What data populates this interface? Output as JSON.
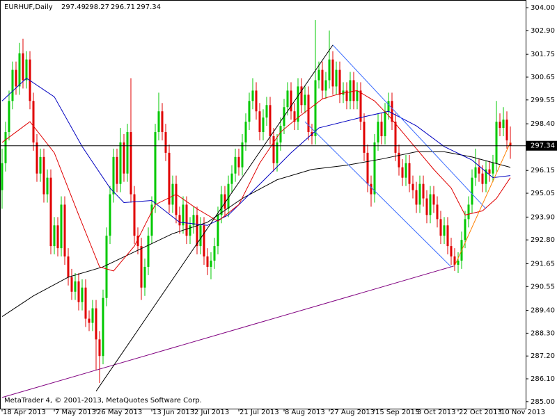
{
  "chart_data": {
    "type": "candlestick",
    "title": "EURHUF,Daily",
    "footer": "MetaTrader 4, © 2001-2013, MetaQuotes Software Corp.",
    "up_color": "#00c800",
    "down_color": "#e00000",
    "xlim": [
      -0.6,
      150.4
    ],
    "ylim": [
      284.66,
      304.37
    ],
    "xticks": [
      {
        "value": 0,
        "label": "18 Apr 2013"
      },
      {
        "value": 15,
        "label": "7 May 2013"
      },
      {
        "value": 27,
        "label": "26 May 2013"
      },
      {
        "value": 43,
        "label": "13 Jun 2013"
      },
      {
        "value": 55,
        "label": "2 Jul 2013"
      },
      {
        "value": 68,
        "label": "21 Jul 2013"
      },
      {
        "value": 81,
        "label": "8 Aug 2013"
      },
      {
        "value": 94,
        "label": "27 Aug 2013"
      },
      {
        "value": 107,
        "label": "15 Sep 2013"
      },
      {
        "value": 119,
        "label": "3 Oct 2013"
      },
      {
        "value": 131,
        "label": "22 Oct 2013"
      },
      {
        "value": 143,
        "label": "10 Nov 2013"
      }
    ],
    "yticks": [
      {
        "value": 304,
        "label": "304.00"
      },
      {
        "value": 302.9,
        "label": "302.90"
      },
      {
        "value": 301.75,
        "label": "301.75"
      },
      {
        "value": 300.65,
        "label": "300.65"
      },
      {
        "value": 299.55,
        "label": "299.55"
      },
      {
        "value": 298.4,
        "label": "298.40"
      },
      {
        "value": 296.15,
        "label": "296.15"
      },
      {
        "value": 295.05,
        "label": "295.05"
      },
      {
        "value": 293.9,
        "label": "293.90"
      },
      {
        "value": 292.8,
        "label": "292.80"
      },
      {
        "value": 291.65,
        "label": "291.65"
      },
      {
        "value": 290.55,
        "label": "290.55"
      },
      {
        "value": 289.4,
        "label": "289.40"
      },
      {
        "value": 288.3,
        "label": "288.30"
      },
      {
        "value": 287.2,
        "label": "287.20"
      },
      {
        "value": 286.1,
        "label": "286.10"
      },
      {
        "value": 285,
        "label": "285.00"
      }
    ],
    "price_line": 297.34,
    "ohlc": [
      [
        295.2,
        297.2,
        294.3,
        296.5
      ],
      [
        296.5,
        298.5,
        296.1,
        298
      ],
      [
        298,
        300,
        297.6,
        299.5
      ],
      [
        299.5,
        301.4,
        299.1,
        301
      ],
      [
        301,
        301.4,
        299.8,
        300.2
      ],
      [
        300.2,
        302.3,
        299.8,
        301.8
      ],
      [
        301.8,
        302.5,
        300.1,
        300.5
      ],
      [
        300.5,
        301.9,
        300.1,
        301.5
      ],
      [
        301.5,
        301.9,
        299.1,
        299.5
      ],
      [
        299.5,
        299.9,
        297.1,
        297.5
      ],
      [
        297.5,
        297.9,
        295.6,
        296
      ],
      [
        296,
        297.2,
        295.6,
        296.8
      ],
      [
        296.8,
        297.2,
        294.6,
        295
      ],
      [
        295,
        296.2,
        294.6,
        295.8
      ],
      [
        295.8,
        296.2,
        292.1,
        292.5
      ],
      [
        292.5,
        293.9,
        292.1,
        293.5
      ],
      [
        293.5,
        293.9,
        292,
        292.4
      ],
      [
        292.4,
        294.9,
        292,
        294.5
      ],
      [
        294.5,
        294.9,
        291.6,
        292
      ],
      [
        292,
        292.4,
        290.6,
        291
      ],
      [
        291,
        291.4,
        289.9,
        290.3
      ],
      [
        290.3,
        291.2,
        289.9,
        290.8
      ],
      [
        290.8,
        291.2,
        289.4,
        289.8
      ],
      [
        289.8,
        290.9,
        289.4,
        290.5
      ],
      [
        290.5,
        290.9,
        288.6,
        289
      ],
      [
        289,
        289.4,
        288.4,
        288.8
      ],
      [
        288.8,
        289.9,
        288.4,
        289.5
      ],
      [
        289.5,
        289.9,
        286.5,
        288
      ],
      [
        288,
        288.4,
        285.9,
        287.2
      ],
      [
        287.2,
        290.4,
        286.8,
        290
      ],
      [
        290,
        293.4,
        289.6,
        293
      ],
      [
        293,
        295.4,
        292.6,
        295
      ],
      [
        295,
        297.2,
        294.6,
        296.8
      ],
      [
        296.8,
        297.2,
        295.1,
        295.5
      ],
      [
        295.5,
        298.2,
        295.1,
        297.5
      ],
      [
        297.5,
        297.9,
        295.6,
        296
      ],
      [
        296,
        298.4,
        295.6,
        298
      ],
      [
        298,
        300.6,
        294.6,
        295
      ],
      [
        295,
        295.4,
        292.6,
        293
      ],
      [
        293,
        293.4,
        292.1,
        292.5
      ],
      [
        292.5,
        292.9,
        289.9,
        290.5
      ],
      [
        290.5,
        291.9,
        290.1,
        291.5
      ],
      [
        291.5,
        293.4,
        291.1,
        293
      ],
      [
        293,
        294.9,
        292.6,
        294.5
      ],
      [
        294.5,
        298.4,
        294.1,
        298
      ],
      [
        298,
        299.9,
        297.6,
        299
      ],
      [
        299,
        299.4,
        297.6,
        298
      ],
      [
        298,
        298.4,
        296.6,
        297
      ],
      [
        297,
        297.4,
        294.1,
        294.5
      ],
      [
        294.5,
        295.9,
        294.1,
        295.5
      ],
      [
        295.5,
        295.9,
        293.6,
        294
      ],
      [
        294,
        294.4,
        293.1,
        293.5
      ],
      [
        293.5,
        294.9,
        293.1,
        294.5
      ],
      [
        294.5,
        294.9,
        292.6,
        293
      ],
      [
        293,
        293.9,
        292.6,
        293.5
      ],
      [
        293.5,
        294.4,
        293.1,
        294
      ],
      [
        294,
        294.4,
        292.1,
        292.5
      ],
      [
        292.5,
        293.9,
        292.1,
        293.5
      ],
      [
        293.5,
        293.9,
        291.6,
        292
      ],
      [
        292,
        292.4,
        291.1,
        291.5
      ],
      [
        291.5,
        292.2,
        290.9,
        291.8
      ],
      [
        291.8,
        292.9,
        291.4,
        292.5
      ],
      [
        292.5,
        294.4,
        292.1,
        294
      ],
      [
        294,
        295.4,
        293.6,
        295
      ],
      [
        295,
        295.4,
        293.9,
        294.3
      ],
      [
        294.3,
        295.9,
        293.9,
        295.5
      ],
      [
        295.5,
        296.4,
        295.1,
        296
      ],
      [
        296,
        297.2,
        295.6,
        296.8
      ],
      [
        296.8,
        297.2,
        295.9,
        296.3
      ],
      [
        296.3,
        297.9,
        295.9,
        297.5
      ],
      [
        297.5,
        298.9,
        297.1,
        298.5
      ],
      [
        298.5,
        299.9,
        298.1,
        299.5
      ],
      [
        299.5,
        300.6,
        299.1,
        300
      ],
      [
        300,
        300.4,
        298.6,
        299
      ],
      [
        299,
        299.4,
        297.6,
        298
      ],
      [
        298,
        299.1,
        297.6,
        298.7
      ],
      [
        298.7,
        299.7,
        298.3,
        299.3
      ],
      [
        299.3,
        299.7,
        297.4,
        297.8
      ],
      [
        297.8,
        298.2,
        296.1,
        296.5
      ],
      [
        296.5,
        297.9,
        296.1,
        297.5
      ],
      [
        297.5,
        298.7,
        297.1,
        298.3
      ],
      [
        298.3,
        299.6,
        297.9,
        299.2
      ],
      [
        299.2,
        300.4,
        298.8,
        300
      ],
      [
        300,
        300.4,
        298.6,
        299
      ],
      [
        299,
        299.4,
        298.1,
        298.5
      ],
      [
        298.5,
        300.6,
        298.1,
        300.2
      ],
      [
        300.2,
        300.6,
        298.9,
        299.3
      ],
      [
        299.3,
        300.2,
        298.9,
        299.8
      ],
      [
        299.8,
        300.2,
        297.6,
        298
      ],
      [
        298,
        298.4,
        297.4,
        297.8
      ],
      [
        297.8,
        303.4,
        297.4,
        300.5
      ],
      [
        300.5,
        301.4,
        300.1,
        301
      ],
      [
        301,
        301.4,
        299.6,
        300
      ],
      [
        300,
        300.9,
        299.6,
        300.5
      ],
      [
        300.5,
        302.9,
        300.1,
        301.5
      ],
      [
        301.5,
        301.9,
        299.8,
        300.2
      ],
      [
        300.2,
        301.4,
        299.8,
        301
      ],
      [
        301,
        301.4,
        299.4,
        299.8
      ],
      [
        299.8,
        300.4,
        299.4,
        300
      ],
      [
        300,
        300.4,
        299.1,
        299.5
      ],
      [
        299.5,
        300.9,
        299.1,
        300.5
      ],
      [
        300.5,
        300.9,
        299.1,
        299.5
      ],
      [
        299.5,
        300.4,
        299.1,
        300
      ],
      [
        300,
        300.4,
        298.1,
        298.5
      ],
      [
        298.5,
        298.9,
        296.6,
        297
      ],
      [
        297,
        297.4,
        295.1,
        295.5
      ],
      [
        295.5,
        295.9,
        294.4,
        295
      ],
      [
        295,
        297.9,
        294.6,
        297.5
      ],
      [
        297.5,
        298.9,
        297.1,
        298.5
      ],
      [
        298.5,
        298.9,
        297.4,
        297.8
      ],
      [
        297.8,
        299.4,
        297.4,
        299
      ],
      [
        299,
        299.9,
        298.6,
        299.5
      ],
      [
        299.5,
        299.9,
        298.1,
        298.5
      ],
      [
        298.5,
        298.9,
        296.6,
        297
      ],
      [
        297,
        297.4,
        295.9,
        296.3
      ],
      [
        296.3,
        296.7,
        295.4,
        295.8
      ],
      [
        295.8,
        296.9,
        295.4,
        296.5
      ],
      [
        296.5,
        296.9,
        295.1,
        295.5
      ],
      [
        295.5,
        295.9,
        294.8,
        295.2
      ],
      [
        295.2,
        295.6,
        294.1,
        294.5
      ],
      [
        294.5,
        295.9,
        294.1,
        295.5
      ],
      [
        295.5,
        295.9,
        294.4,
        294.8
      ],
      [
        294.8,
        295.2,
        293.6,
        294
      ],
      [
        294,
        295.4,
        293.6,
        295
      ],
      [
        295,
        295.4,
        294.1,
        294.5
      ],
      [
        294.5,
        294.9,
        293.4,
        293.8
      ],
      [
        293.8,
        294.2,
        292.6,
        293
      ],
      [
        293,
        293.9,
        292.6,
        293.5
      ],
      [
        293.5,
        293.9,
        292.1,
        292.5
      ],
      [
        292.5,
        292.9,
        291.6,
        292
      ],
      [
        292,
        292.4,
        291.3,
        291.6
      ],
      [
        291.6,
        292.2,
        291.2,
        291.8
      ],
      [
        291.8,
        293.2,
        291.4,
        292.8
      ],
      [
        292.8,
        294.2,
        292.4,
        293.8
      ],
      [
        293.8,
        294.9,
        293.4,
        294.5
      ],
      [
        294.5,
        296.2,
        294.1,
        295.8
      ],
      [
        295.8,
        297.2,
        295.4,
        296.3
      ],
      [
        296.3,
        296.7,
        295.6,
        296
      ],
      [
        296,
        296.4,
        295.1,
        295.5
      ],
      [
        295.5,
        296.6,
        295.1,
        296.2
      ],
      [
        296.2,
        296.6,
        295.6,
        296
      ],
      [
        296,
        296.9,
        295.6,
        296.5
      ],
      [
        296.5,
        299.5,
        296.1,
        298.5
      ],
      [
        298.5,
        298.9,
        297.8,
        298.2
      ],
      [
        298.2,
        299.2,
        297.8,
        298.6
      ],
      [
        298.6,
        299,
        297.2,
        297.6
      ],
      [
        297.49,
        298.27,
        296.71,
        297.34
      ]
    ],
    "series": [
      {
        "color": "#000000",
        "x": [
          0,
          9,
          19,
          29,
          39,
          49,
          59,
          69,
          79,
          89,
          99,
          109,
          119,
          127,
          135,
          146
        ],
        "values": [
          289.1,
          290.1,
          291,
          291.5,
          292.3,
          293.1,
          293.65,
          294.8,
          295.7,
          296.2,
          296.4,
          296.7,
          297.05,
          297.05,
          296.8,
          296.3
        ]
      },
      {
        "color": "#0000c0",
        "x": [
          0,
          7,
          15,
          23,
          31,
          35,
          43,
          51,
          59,
          65,
          75,
          83,
          91,
          103,
          111,
          119,
          127,
          135,
          141,
          146
        ],
        "values": [
          299.5,
          300.6,
          299.7,
          297.3,
          295.3,
          294.6,
          294.7,
          293.65,
          293.5,
          294,
          295.65,
          297,
          298.2,
          298.7,
          299,
          298.3,
          297.3,
          296.65,
          295.8,
          295.9
        ]
      },
      {
        "color": "#e00000",
        "x": [
          0,
          8,
          15,
          22,
          28,
          32,
          38,
          44,
          50,
          56,
          62,
          68,
          74,
          80,
          85,
          92,
          97,
          102,
          107,
          111,
          115,
          119,
          124,
          129,
          133,
          138,
          142,
          146
        ],
        "values": [
          297.5,
          298.5,
          297,
          294,
          291.5,
          291.3,
          292.5,
          294.5,
          295,
          294.3,
          293.7,
          294.5,
          296.5,
          298,
          298.7,
          299.6,
          299.85,
          300,
          299.5,
          298.8,
          298,
          297.2,
          296.2,
          295.3,
          294,
          294.2,
          294.8,
          295.8
        ]
      },
      {
        "color": "#800080",
        "x": [
          0,
          130
        ],
        "values": [
          285.2,
          291.55
        ]
      },
      {
        "color": "#000000",
        "x": [
          27,
          95
        ],
        "values": [
          285.5,
          302.2
        ]
      },
      {
        "color": "#3a6cff",
        "x": [
          95,
          139
        ],
        "values": [
          302.2,
          294.3
        ]
      },
      {
        "color": "#3a6cff",
        "x": [
          87,
          129
        ],
        "values": [
          298.5,
          291.5
        ]
      },
      {
        "color": "#ff8000",
        "x": [
          130,
          146
        ],
        "values": [
          291.55,
          297.5
        ]
      }
    ]
  }
}
